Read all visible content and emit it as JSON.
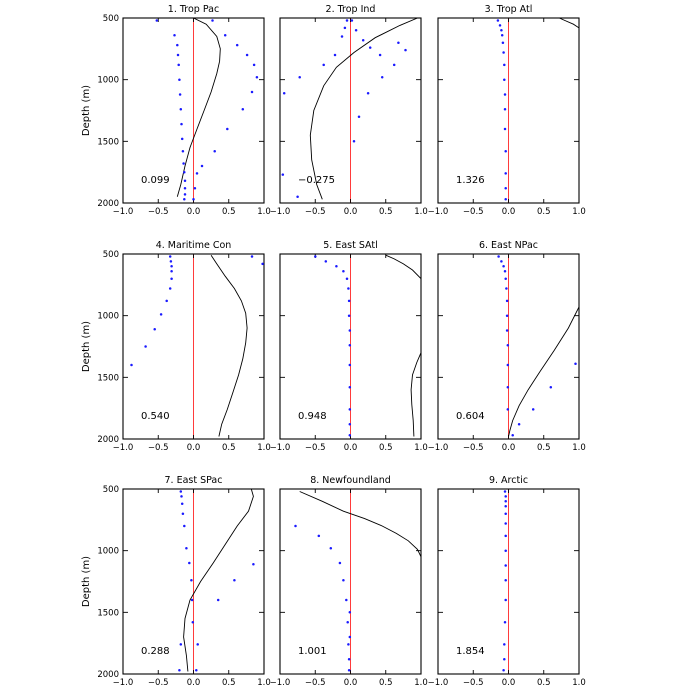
{
  "figure": {
    "xticks": [
      "−1.0",
      "−0.5",
      "0.0",
      "0.5",
      "1.0"
    ],
    "yticks": [
      "500",
      "1000",
      "1500",
      "2000"
    ],
    "ylabel": "Depth (m)",
    "zero_line_color": "#ff3b3b",
    "point_color": "#1a1aff",
    "line_color": "#000000"
  },
  "chart_data": [
    {
      "type": "line+scatter",
      "title": "1. Trop Pac",
      "annotation": "0.099",
      "xlim": [
        -1,
        1
      ],
      "ylim": [
        2000,
        500
      ],
      "xlabel": "",
      "ylabel": "Depth (m)",
      "line": {
        "x": [
          0.0,
          0.18,
          0.33,
          0.38,
          0.37,
          0.33,
          0.25,
          0.15,
          0.05,
          -0.05,
          -0.12,
          -0.18,
          -0.23
        ],
        "y": [
          500,
          550,
          650,
          750,
          850,
          950,
          1100,
          1250,
          1400,
          1550,
          1700,
          1850,
          1950
        ]
      },
      "points": {
        "x": [
          -0.52,
          -0.27,
          -0.23,
          -0.22,
          -0.21,
          -0.2,
          -0.19,
          -0.18,
          -0.17,
          -0.16,
          -0.15,
          -0.14,
          -0.13,
          -0.12,
          -0.12,
          -0.12,
          -0.13
        ],
        "y": [
          520,
          640,
          720,
          800,
          880,
          1000,
          1120,
          1240,
          1360,
          1480,
          1580,
          1680,
          1750,
          1820,
          1880,
          1930,
          1970
        ]
      },
      "points2": {
        "x": [
          0.27,
          0.45,
          0.62,
          0.76,
          0.86,
          0.9,
          0.83,
          0.7,
          0.48,
          0.3,
          0.12,
          0.05,
          0.02,
          0.0
        ],
        "y": [
          520,
          640,
          720,
          800,
          880,
          980,
          1100,
          1240,
          1400,
          1580,
          1700,
          1760,
          1880,
          1970
        ]
      }
    },
    {
      "type": "line+scatter",
      "title": "2. Trop Ind",
      "annotation": "−0.275",
      "xlim": [
        -1,
        1
      ],
      "ylim": [
        2000,
        500
      ],
      "xlabel": "",
      "ylabel": "",
      "line": {
        "x": [
          0.95,
          0.7,
          0.35,
          0.05,
          -0.2,
          -0.38,
          -0.52,
          -0.57,
          -0.55,
          -0.48,
          -0.4
        ],
        "y": [
          500,
          560,
          660,
          780,
          900,
          1050,
          1250,
          1450,
          1650,
          1850,
          1970
        ]
      },
      "points": {
        "x": [
          -0.05,
          -0.08,
          -0.12,
          -0.22,
          -0.38,
          -0.72,
          -0.94,
          -0.96,
          -0.75
        ],
        "y": [
          520,
          580,
          650,
          800,
          880,
          980,
          1110,
          1770,
          1950
        ]
      },
      "points2": {
        "x": [
          0.02,
          0.08,
          0.18,
          0.28,
          0.42,
          0.68,
          0.78,
          0.62,
          0.45,
          0.25,
          0.12,
          0.05
        ],
        "y": [
          520,
          600,
          680,
          740,
          800,
          700,
          760,
          880,
          980,
          1110,
          1300,
          1500
        ]
      }
    },
    {
      "type": "line+scatter",
      "title": "3. Trop Atl",
      "annotation": "1.326",
      "xlim": [
        -1,
        1
      ],
      "ylim": [
        2000,
        500
      ],
      "xlabel": "",
      "ylabel": "",
      "line": {
        "x": [
          0.72,
          0.8,
          0.92,
          1.0
        ],
        "y": [
          500,
          520,
          550,
          580
        ]
      },
      "points": {
        "x": [
          -0.15,
          -0.12,
          -0.1,
          -0.09,
          -0.08,
          -0.07,
          -0.06,
          -0.06,
          -0.05,
          -0.05,
          -0.05,
          -0.04,
          -0.04,
          -0.04,
          -0.04
        ],
        "y": [
          520,
          560,
          600,
          640,
          700,
          780,
          880,
          1000,
          1120,
          1240,
          1400,
          1580,
          1760,
          1880,
          1970
        ]
      },
      "points2": {
        "x": [],
        "y": []
      }
    },
    {
      "type": "line+scatter",
      "title": "4. Maritime Con",
      "annotation": "0.540",
      "xlim": [
        -1,
        1
      ],
      "ylim": [
        2000,
        500
      ],
      "xlabel": "",
      "ylabel": "Depth (m)",
      "line": {
        "x": [
          0.25,
          0.33,
          0.45,
          0.58,
          0.68,
          0.74,
          0.76,
          0.74,
          0.7,
          0.64,
          0.56,
          0.48,
          0.4,
          0.36
        ],
        "y": [
          510,
          580,
          680,
          780,
          880,
          980,
          1100,
          1220,
          1350,
          1480,
          1620,
          1760,
          1880,
          1980
        ]
      },
      "points": {
        "x": [
          -0.33,
          -0.32,
          -0.31,
          -0.31,
          -0.31,
          -0.33,
          -0.38,
          -0.46,
          -0.55,
          -0.68,
          -0.88
        ],
        "y": [
          520,
          560,
          600,
          640,
          700,
          780,
          880,
          990,
          1110,
          1250,
          1400
        ]
      },
      "points2": {
        "x": [
          0.83,
          0.98
        ],
        "y": [
          520,
          580
        ]
      }
    },
    {
      "type": "line+scatter",
      "title": "5. East SAtl",
      "annotation": "0.948",
      "xlim": [
        -1,
        1
      ],
      "ylim": [
        2000,
        500
      ],
      "xlabel": "",
      "ylabel": "",
      "line": {
        "x": [
          0.5,
          0.62,
          0.75,
          0.88,
          1.0
        ],
        "y": [
          510,
          540,
          580,
          630,
          700
        ]
      },
      "line2": {
        "x": [
          1.0,
          0.94,
          0.88,
          0.86,
          0.87,
          0.89,
          0.9
        ],
        "y": [
          1300,
          1380,
          1480,
          1600,
          1720,
          1850,
          1980
        ]
      },
      "points": {
        "x": [
          -0.5,
          -0.35,
          -0.2,
          -0.1,
          -0.05,
          -0.03,
          -0.02,
          -0.02,
          -0.01,
          -0.01,
          -0.01,
          -0.01,
          -0.01,
          -0.01,
          -0.01
        ],
        "y": [
          520,
          560,
          600,
          640,
          700,
          780,
          880,
          1000,
          1120,
          1240,
          1400,
          1580,
          1760,
          1880,
          1970
        ]
      },
      "points2": {
        "x": [],
        "y": []
      }
    },
    {
      "type": "line+scatter",
      "title": "6. East NPac",
      "annotation": "0.604",
      "xlim": [
        -1,
        1
      ],
      "ylim": [
        2000,
        500
      ],
      "xlabel": "",
      "ylabel": "",
      "line": {
        "x": [
          1.0,
          0.85,
          0.65,
          0.45,
          0.28,
          0.15,
          0.06,
          0.02,
          0.0
        ],
        "y": [
          930,
          1100,
          1280,
          1450,
          1600,
          1730,
          1850,
          1930,
          1980
        ]
      },
      "points": {
        "x": [
          -0.14,
          -0.1,
          -0.07,
          -0.05,
          -0.04,
          -0.03,
          -0.02,
          -0.02,
          -0.02,
          -0.01,
          -0.01,
          -0.01,
          -0.01,
          0.06
        ],
        "y": [
          520,
          560,
          600,
          640,
          700,
          780,
          880,
          1000,
          1120,
          1240,
          1400,
          1580,
          1760,
          1970
        ]
      },
      "points2": {
        "x": [
          0.95,
          0.6,
          0.35,
          0.15
        ],
        "y": [
          1390,
          1580,
          1760,
          1880
        ]
      }
    },
    {
      "type": "line+scatter",
      "title": "7. East SPac",
      "annotation": "0.288",
      "xlim": [
        -1,
        1
      ],
      "ylim": [
        2000,
        500
      ],
      "xlabel": "",
      "ylabel": "Depth (m)",
      "line": {
        "x": [
          0.82,
          0.85,
          0.78,
          0.62,
          0.45,
          0.28,
          0.1,
          -0.05,
          -0.12,
          -0.14,
          -0.1,
          -0.08
        ],
        "y": [
          500,
          560,
          680,
          800,
          950,
          1100,
          1250,
          1400,
          1550,
          1700,
          1850,
          1980
        ]
      },
      "points": {
        "x": [
          -0.18,
          -0.17,
          -0.16,
          -0.15,
          -0.13,
          -0.1,
          -0.06,
          -0.03,
          -0.02,
          -0.01,
          -0.18,
          -0.2
        ],
        "y": [
          520,
          560,
          620,
          700,
          800,
          980,
          1100,
          1240,
          1400,
          1580,
          1760,
          1970
        ]
      },
      "points2": {
        "x": [
          0.85,
          0.58,
          0.35,
          0.06,
          0.04
        ],
        "y": [
          1110,
          1240,
          1400,
          1760,
          1970
        ]
      }
    },
    {
      "type": "line+scatter",
      "title": "8. Newfoundland",
      "annotation": "1.001",
      "xlim": [
        -1,
        1
      ],
      "ylim": [
        2000,
        500
      ],
      "xlabel": "",
      "ylabel": "",
      "line": {
        "x": [
          -0.72,
          -0.4,
          -0.1,
          0.2,
          0.45,
          0.65,
          0.82,
          0.95,
          1.0
        ],
        "y": [
          520,
          600,
          680,
          740,
          800,
          860,
          920,
          990,
          1050
        ]
      },
      "points": {
        "x": [
          -0.78,
          -0.45,
          -0.28,
          -0.15,
          -0.1,
          -0.06,
          -0.04,
          -0.03,
          -0.02,
          -0.02,
          -0.01,
          -0.01
        ],
        "y": [
          800,
          880,
          980,
          1100,
          1240,
          1400,
          1580,
          1760,
          1880,
          1970,
          1700,
          1500
        ]
      },
      "points2": {
        "x": [],
        "y": []
      }
    },
    {
      "type": "line+scatter",
      "title": "9. Arctic",
      "annotation": "1.854",
      "xlim": [
        -1,
        1
      ],
      "ylim": [
        2000,
        500
      ],
      "xlabel": "",
      "ylabel": "",
      "line": {
        "x": [],
        "y": []
      },
      "points": {
        "x": [
          -0.05,
          -0.04,
          -0.04,
          -0.04,
          -0.04,
          -0.04,
          -0.04,
          -0.04,
          -0.04,
          -0.04,
          -0.04,
          -0.05,
          -0.06,
          -0.06,
          -0.07
        ],
        "y": [
          520,
          560,
          600,
          640,
          700,
          780,
          880,
          1000,
          1120,
          1240,
          1400,
          1580,
          1760,
          1880,
          1970
        ]
      },
      "points2": {
        "x": [],
        "y": []
      }
    }
  ]
}
